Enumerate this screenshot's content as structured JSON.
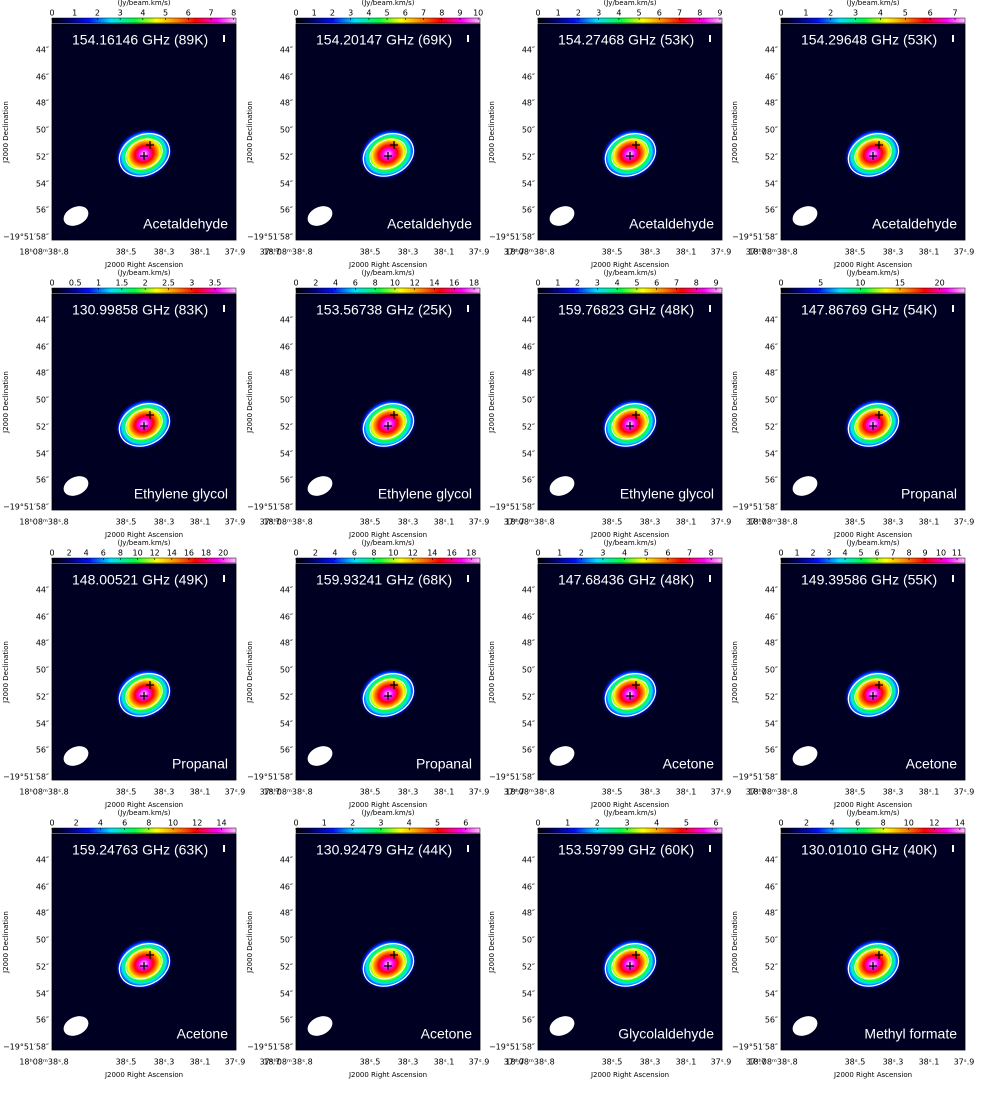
{
  "axes": {
    "x_label": "J2000 Right Ascension",
    "y_label": "J2000 Declination",
    "colorbar_label": "(Jy/beam.km/s)",
    "ra_ticks": [
      "18ʰ08ᵐ38ˢ.8",
      "38ˢ.5",
      "38ˢ.3",
      "38ˢ.1",
      "37ˢ.9",
      "37ˢ.7"
    ],
    "dec_ticks": [
      "44″",
      "46″",
      "48″",
      "50″",
      "52″",
      "54″",
      "56″",
      "−19°51′58″"
    ]
  },
  "panels": [
    {
      "frequency": "154.16146 GHz (89K)",
      "molecule": "Acetaldehyde",
      "colorbar_ticks": [
        0,
        1,
        2,
        3,
        4,
        5,
        6,
        7,
        8
      ],
      "colorbar_lim": [
        0,
        8.1
      ]
    },
    {
      "frequency": "154.20147 GHz (69K)",
      "molecule": "Acetaldehyde",
      "colorbar_ticks": [
        0,
        1,
        2,
        3,
        4,
        5,
        6,
        7,
        8,
        9,
        10
      ],
      "colorbar_lim": [
        0,
        10.1
      ]
    },
    {
      "frequency": "154.27468 GHz (53K)",
      "molecule": "Acetaldehyde",
      "colorbar_ticks": [
        0,
        1,
        2,
        3,
        4,
        5,
        6,
        7,
        8,
        9
      ],
      "colorbar_lim": [
        0,
        9.1
      ]
    },
    {
      "frequency": "154.29648 GHz (53K)",
      "molecule": "Acetaldehyde",
      "colorbar_ticks": [
        0,
        1,
        2,
        3,
        4,
        5,
        6,
        7
      ],
      "colorbar_lim": [
        0,
        7.4
      ]
    },
    {
      "frequency": "130.99858 GHz (83K)",
      "molecule": "Ethylene glycol",
      "colorbar_ticks": [
        0,
        0.5,
        1,
        1.5,
        2,
        2.5,
        3,
        3.5
      ],
      "colorbar_lim": [
        0,
        3.95
      ]
    },
    {
      "frequency": "153.56738 GHz (25K)",
      "molecule": "Ethylene glycol",
      "colorbar_ticks": [
        0,
        2,
        4,
        6,
        8,
        10,
        12,
        14,
        16,
        18
      ],
      "colorbar_lim": [
        0,
        18.6
      ]
    },
    {
      "frequency": "159.76823 GHz (48K)",
      "molecule": "Ethylene glycol",
      "colorbar_ticks": [
        0,
        1,
        2,
        3,
        4,
        5,
        6,
        7,
        8,
        9
      ],
      "colorbar_lim": [
        0,
        9.3
      ]
    },
    {
      "frequency": "147.86769 GHz (54K)",
      "molecule": "Propanal",
      "colorbar_ticks": [
        0,
        5,
        10,
        15,
        20
      ],
      "colorbar_lim": [
        0,
        23.2
      ]
    },
    {
      "frequency": "148.00521 GHz (49K)",
      "molecule": "Propanal",
      "colorbar_ticks": [
        0,
        2,
        4,
        6,
        8,
        10,
        12,
        14,
        16,
        18,
        20
      ],
      "colorbar_lim": [
        0,
        21.5
      ]
    },
    {
      "frequency": "159.93241 GHz (68K)",
      "molecule": "Propanal",
      "colorbar_ticks": [
        0,
        2,
        4,
        6,
        8,
        10,
        12,
        14,
        16,
        18
      ],
      "colorbar_lim": [
        0,
        18.9
      ]
    },
    {
      "frequency": "147.68436 GHz (48K)",
      "molecule": "Acetone",
      "colorbar_ticks": [
        0,
        1,
        2,
        3,
        4,
        5,
        6,
        7,
        8
      ],
      "colorbar_lim": [
        0,
        8.5
      ]
    },
    {
      "frequency": "149.39586 GHz (55K)",
      "molecule": "Acetone",
      "colorbar_ticks": [
        0,
        1,
        2,
        3,
        4,
        5,
        6,
        7,
        8,
        9,
        10,
        11
      ],
      "colorbar_lim": [
        0,
        11.5
      ]
    },
    {
      "frequency": "159.24763 GHz (63K)",
      "molecule": "Acetone",
      "colorbar_ticks": [
        0,
        2,
        4,
        6,
        8,
        10,
        12,
        14
      ],
      "colorbar_lim": [
        0,
        15.2
      ]
    },
    {
      "frequency": "130.92479 GHz (44K)",
      "molecule": "Acetone",
      "colorbar_ticks": [
        0,
        1,
        2,
        3,
        4,
        5,
        6
      ],
      "colorbar_lim": [
        0,
        6.5
      ]
    },
    {
      "frequency": "153.59799 GHz (60K)",
      "molecule": "Glycolaldehyde",
      "colorbar_ticks": [
        0,
        1,
        2,
        3,
        4,
        5,
        6
      ],
      "colorbar_lim": [
        0,
        6.2
      ]
    },
    {
      "frequency": "130.01010 GHz (40K)",
      "molecule": "Methyl formate",
      "colorbar_ticks": [
        0,
        2,
        4,
        6,
        8,
        10,
        12,
        14
      ],
      "colorbar_lim": [
        0,
        14.4
      ]
    }
  ]
}
